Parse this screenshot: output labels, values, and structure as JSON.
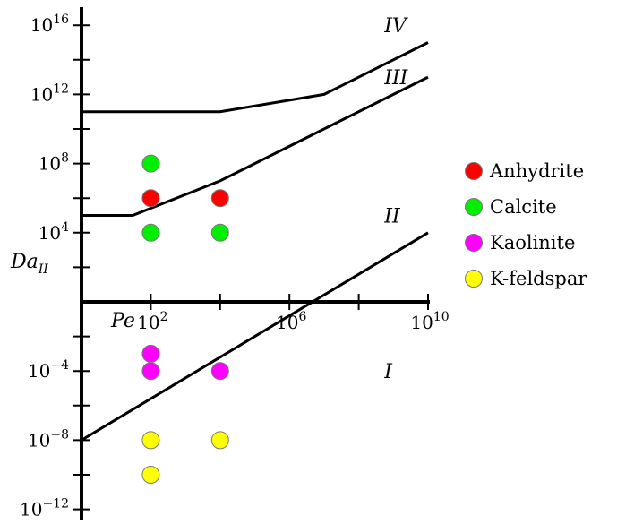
{
  "chart_data": {
    "type": "scatter",
    "x_scale": "log10",
    "y_scale": "log10",
    "xlim": [
      1,
      10000000000
    ],
    "ylim": [
      1e-13,
      1e+17
    ],
    "xlabel": "Pe",
    "ylabel": {
      "main": "Da",
      "sub": "II"
    },
    "x_ticks": [
      {
        "base": "10",
        "exp": "2",
        "value": 100
      },
      {
        "base": "10",
        "exp": "6",
        "value": 1000000
      },
      {
        "base": "10",
        "exp": "10",
        "value": 10000000000
      }
    ],
    "y_ticks": [
      {
        "base": "10",
        "exp": "16",
        "value": 1e+16
      },
      {
        "base": "10",
        "exp": "12",
        "value": 1000000000000.0
      },
      {
        "base": "10",
        "exp": "8",
        "value": 100000000.0
      },
      {
        "base": "10",
        "exp": "4",
        "value": 10000.0
      },
      {
        "base": "10",
        "exp": "−4",
        "value": 0.0001
      },
      {
        "base": "10",
        "exp": "−8",
        "value": 1e-08
      },
      {
        "base": "10",
        "exp": "−12",
        "value": 1e-12
      }
    ],
    "boundaries": [
      {
        "points": [
          [
            1,
            1e-08
          ],
          [
            10000000000,
            10000.0
          ]
        ]
      },
      {
        "points": [
          [
            1,
            100000.0
          ],
          [
            30,
            100000.0
          ],
          [
            10000,
            10000000.0
          ],
          [
            10000000000,
            10000000000000.0
          ]
        ]
      },
      {
        "points": [
          [
            1,
            100000000000.0
          ],
          [
            10000,
            100000000000.0
          ],
          [
            10000000,
            1000000000000.0
          ],
          [
            10000000000,
            1000000000000000.0
          ]
        ]
      }
    ],
    "regions": [
      {
        "label": "I",
        "x": 1000000000.0,
        "y": 0.0001
      },
      {
        "label": "II",
        "x": 1000000000.0,
        "y": 100000.0
      },
      {
        "label": "III",
        "x": 1000000000.0,
        "y": 10000000000000.0
      },
      {
        "label": "IV",
        "x": 1000000000.0,
        "y": 1e+16
      }
    ],
    "series": [
      {
        "name": "Anhydrite",
        "color": "#ff0000",
        "points": [
          [
            100,
            1000000.0
          ],
          [
            10000,
            1000000.0
          ]
        ]
      },
      {
        "name": "Calcite",
        "color": "#00ee00",
        "points": [
          [
            100,
            100000000.0
          ],
          [
            100,
            10000.0
          ],
          [
            10000,
            10000.0
          ]
        ]
      },
      {
        "name": "Kaolinite",
        "color": "#ff00ff",
        "points": [
          [
            100,
            0.001
          ],
          [
            100,
            0.0001
          ],
          [
            10000,
            0.0001
          ]
        ]
      },
      {
        "name": "K-feldspar",
        "color": "#ffff00",
        "points": [
          [
            100,
            1e-08
          ],
          [
            10000,
            1e-08
          ],
          [
            100,
            1e-10
          ]
        ]
      }
    ],
    "legend": {
      "position": "right"
    }
  }
}
